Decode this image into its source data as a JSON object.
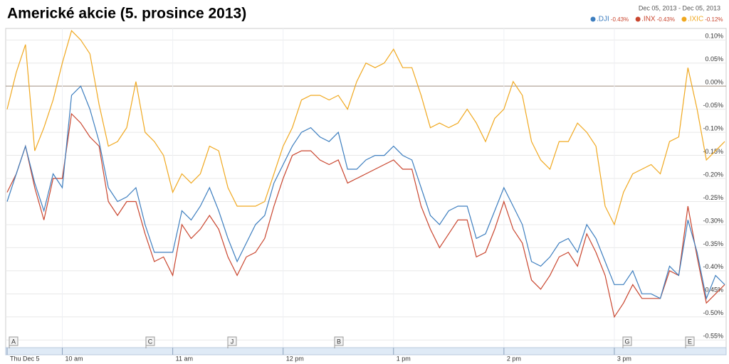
{
  "chart_data": {
    "type": "line",
    "title": "Americké akcie (5. prosince 2013)",
    "date_range": "Dec 05, 2013  -  Dec 05, 2013",
    "categories": [
      "Thu Dec 5",
      null,
      null,
      null,
      null,
      null,
      "10 am",
      null,
      null,
      null,
      null,
      null,
      null,
      null,
      null,
      null,
      null,
      null,
      "11 am",
      null,
      null,
      null,
      null,
      null,
      null,
      null,
      null,
      null,
      null,
      null,
      "12 pm",
      null,
      null,
      null,
      null,
      null,
      null,
      null,
      null,
      null,
      null,
      null,
      "1 pm",
      null,
      null,
      null,
      null,
      null,
      null,
      null,
      null,
      null,
      null,
      null,
      "2 pm",
      null,
      null,
      null,
      null,
      null,
      null,
      null,
      null,
      null,
      null,
      null,
      "3 pm",
      null,
      null,
      null,
      null,
      null,
      null,
      null,
      null,
      null,
      null,
      null,
      null
    ],
    "series": [
      {
        "name": ".DJI",
        "change": "-0.43%",
        "color": "#3d7ebf",
        "values": [
          -0.25,
          -0.19,
          -0.13,
          -0.21,
          -0.27,
          -0.19,
          -0.22,
          -0.02,
          0.0,
          -0.05,
          -0.12,
          -0.22,
          -0.25,
          -0.24,
          -0.22,
          -0.3,
          -0.36,
          -0.36,
          -0.36,
          -0.27,
          -0.29,
          -0.26,
          -0.22,
          -0.27,
          -0.33,
          -0.38,
          -0.34,
          -0.3,
          -0.28,
          -0.21,
          -0.17,
          -0.13,
          -0.1,
          -0.09,
          -0.11,
          -0.12,
          -0.1,
          -0.18,
          -0.18,
          -0.16,
          -0.15,
          -0.15,
          -0.13,
          -0.15,
          -0.16,
          -0.22,
          -0.28,
          -0.3,
          -0.27,
          -0.26,
          -0.26,
          -0.33,
          -0.32,
          -0.27,
          -0.22,
          -0.26,
          -0.3,
          -0.38,
          -0.39,
          -0.37,
          -0.34,
          -0.33,
          -0.36,
          -0.3,
          -0.33,
          -0.38,
          -0.43,
          -0.43,
          -0.4,
          -0.45,
          -0.45,
          -0.46,
          -0.39,
          -0.41,
          -0.29,
          -0.36,
          -0.46,
          -0.41,
          -0.43
        ]
      },
      {
        "name": ".INX",
        "change": "-0.43%",
        "color": "#c9452e",
        "values": [
          -0.23,
          -0.19,
          -0.13,
          -0.22,
          -0.29,
          -0.2,
          -0.2,
          -0.06,
          -0.08,
          -0.11,
          -0.13,
          -0.25,
          -0.28,
          -0.25,
          -0.25,
          -0.32,
          -0.38,
          -0.37,
          -0.41,
          -0.3,
          -0.33,
          -0.31,
          -0.28,
          -0.31,
          -0.37,
          -0.41,
          -0.37,
          -0.36,
          -0.33,
          -0.26,
          -0.2,
          -0.15,
          -0.14,
          -0.14,
          -0.16,
          -0.17,
          -0.16,
          -0.21,
          -0.2,
          -0.19,
          -0.18,
          -0.17,
          -0.16,
          -0.18,
          -0.18,
          -0.26,
          -0.31,
          -0.35,
          -0.32,
          -0.29,
          -0.29,
          -0.37,
          -0.36,
          -0.31,
          -0.25,
          -0.31,
          -0.34,
          -0.42,
          -0.44,
          -0.41,
          -0.37,
          -0.36,
          -0.39,
          -0.32,
          -0.36,
          -0.41,
          -0.5,
          -0.47,
          -0.43,
          -0.46,
          -0.46,
          -0.46,
          -0.4,
          -0.41,
          -0.26,
          -0.37,
          -0.47,
          -0.45,
          -0.43
        ]
      },
      {
        "name": ".IXIC",
        "change": "-0.12%",
        "color": "#f0a81f",
        "values": [
          -0.05,
          0.03,
          0.09,
          -0.14,
          -0.09,
          -0.03,
          0.05,
          0.12,
          0.1,
          0.07,
          -0.04,
          -0.13,
          -0.12,
          -0.09,
          0.01,
          -0.1,
          -0.12,
          -0.15,
          -0.23,
          -0.19,
          -0.21,
          -0.19,
          -0.13,
          -0.14,
          -0.22,
          -0.26,
          -0.26,
          -0.26,
          -0.25,
          -0.19,
          -0.13,
          -0.09,
          -0.03,
          -0.02,
          -0.02,
          -0.03,
          -0.02,
          -0.05,
          0.01,
          0.05,
          0.04,
          0.05,
          0.08,
          0.04,
          0.04,
          -0.02,
          -0.09,
          -0.08,
          -0.09,
          -0.08,
          -0.05,
          -0.08,
          -0.12,
          -0.07,
          -0.05,
          0.01,
          -0.02,
          -0.12,
          -0.16,
          -0.18,
          -0.12,
          -0.12,
          -0.08,
          -0.1,
          -0.13,
          -0.26,
          -0.3,
          -0.23,
          -0.19,
          -0.18,
          -0.17,
          -0.19,
          -0.12,
          -0.11,
          0.04,
          -0.05,
          -0.16,
          -0.14,
          -0.12
        ]
      }
    ],
    "flags": [
      "A",
      "C",
      "J",
      "B",
      "G",
      "E"
    ],
    "ylim": [
      -0.565,
      0.125
    ],
    "yticks": [
      {
        "value": 0.1,
        "label": "0.10%"
      },
      {
        "value": 0.05,
        "label": "0.05%"
      },
      {
        "value": 0,
        "label": "0.00%"
      },
      {
        "value": -0.05,
        "label": "-0.05%"
      },
      {
        "value": -0.1,
        "label": "-0.10%"
      },
      {
        "value": -0.15,
        "label": "-0.15%"
      },
      {
        "value": -0.2,
        "label": "-0.20%"
      },
      {
        "value": -0.25,
        "label": "-0.25%"
      },
      {
        "value": -0.3,
        "label": "-0.30%"
      },
      {
        "value": -0.35,
        "label": "-0.35%"
      },
      {
        "value": -0.4,
        "label": "-0.40%"
      },
      {
        "value": -0.45,
        "label": "-0.45%"
      },
      {
        "value": -0.5,
        "label": "-0.50%"
      },
      {
        "value": -0.55,
        "label": "-0.55%"
      }
    ],
    "grid": true
  }
}
